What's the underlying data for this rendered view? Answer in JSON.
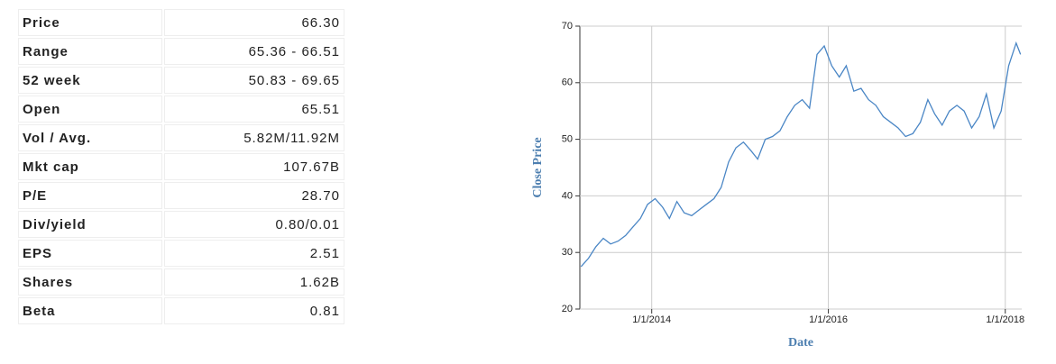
{
  "table": {
    "rows": [
      [
        "Price",
        "66.30"
      ],
      [
        "Range",
        "65.36 - 66.51"
      ],
      [
        "52 week",
        "50.83 - 69.65"
      ],
      [
        "Open",
        "65.51"
      ],
      [
        "Vol / Avg.",
        "5.82M/11.92M"
      ],
      [
        "Mkt cap",
        "107.67B"
      ],
      [
        "P/E",
        "28.70"
      ],
      [
        "Div/yield",
        "0.80/0.01"
      ],
      [
        "EPS",
        "2.51"
      ],
      [
        "Shares",
        "1.62B"
      ],
      [
        "Beta",
        "0.81"
      ]
    ]
  },
  "chart_data": {
    "type": "line",
    "x_label": "Date",
    "y_label": "Close Price",
    "color": "#4a86c5",
    "grid": true,
    "xlim": [
      "2013-03-10",
      "2018-03-10"
    ],
    "xticks": [
      {
        "value": "2014-01-01",
        "label": "1/1/2014"
      },
      {
        "value": "2016-01-01",
        "label": "1/1/2016"
      },
      {
        "value": "2018-01-01",
        "label": "1/1/2018"
      }
    ],
    "ylim": [
      20,
      70
    ],
    "yticks": [
      20,
      30,
      40,
      50,
      60,
      70
    ],
    "x": [
      "2013-03-15",
      "2013-04-15",
      "2013-05-15",
      "2013-06-15",
      "2013-07-15",
      "2013-08-15",
      "2013-09-15",
      "2013-10-15",
      "2013-11-15",
      "2013-12-15",
      "2014-01-15",
      "2014-02-15",
      "2014-03-15",
      "2014-04-15",
      "2014-05-15",
      "2014-06-15",
      "2014-07-15",
      "2014-08-15",
      "2014-09-15",
      "2014-10-15",
      "2014-11-15",
      "2014-12-15",
      "2015-01-15",
      "2015-02-15",
      "2015-03-15",
      "2015-04-15",
      "2015-05-15",
      "2015-06-15",
      "2015-07-15",
      "2015-08-15",
      "2015-09-15",
      "2015-10-15",
      "2015-11-15",
      "2015-12-15",
      "2016-01-15",
      "2016-02-15",
      "2016-03-15",
      "2016-04-15",
      "2016-05-15",
      "2016-06-15",
      "2016-07-15",
      "2016-08-15",
      "2016-09-15",
      "2016-10-15",
      "2016-11-15",
      "2016-12-15",
      "2017-01-15",
      "2017-02-15",
      "2017-03-15",
      "2017-04-15",
      "2017-05-15",
      "2017-06-15",
      "2017-07-15",
      "2017-08-15",
      "2017-09-15",
      "2017-10-15",
      "2017-11-15",
      "2017-12-15",
      "2018-01-15",
      "2018-02-15",
      "2018-03-05"
    ],
    "values": [
      27.5,
      29,
      31,
      32.5,
      31.5,
      32,
      33,
      34.5,
      36,
      38.5,
      39.5,
      38,
      36,
      39,
      37,
      36.5,
      37.5,
      38.5,
      39.5,
      41.5,
      46,
      48.5,
      49.5,
      48,
      46.5,
      50,
      50.5,
      51.5,
      54,
      56,
      57,
      55.5,
      65,
      66.5,
      63,
      61,
      63,
      58.5,
      59,
      57,
      56,
      54,
      53,
      52,
      50.5,
      51,
      53,
      57,
      54.5,
      52.5,
      55,
      56,
      55,
      52,
      54,
      58,
      52,
      55,
      63,
      67,
      65
    ]
  }
}
